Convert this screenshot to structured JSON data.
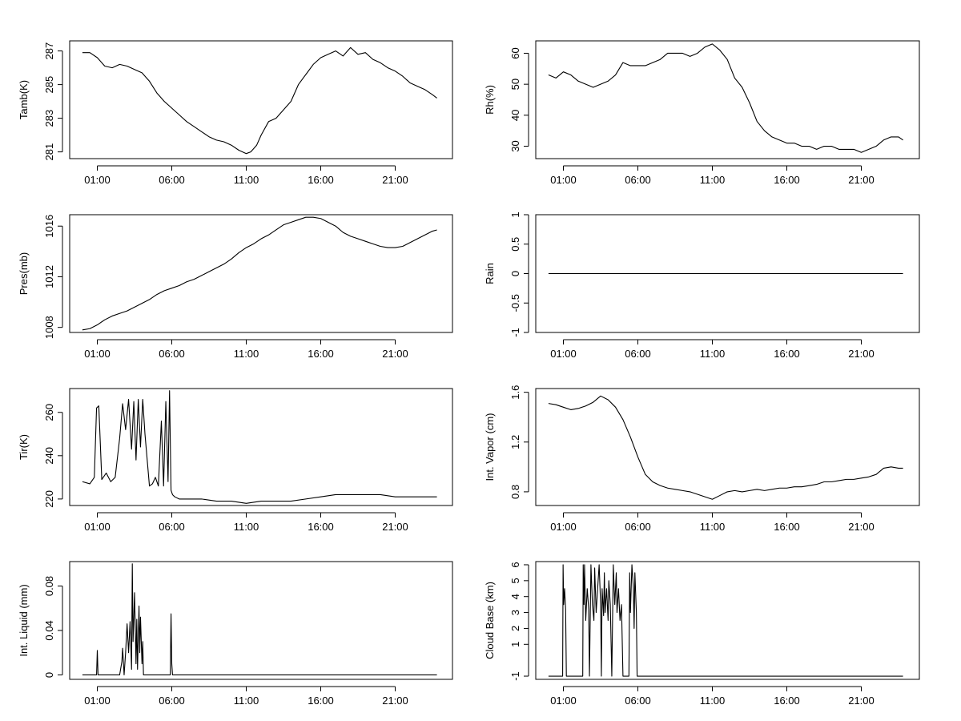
{
  "x_tick_labels": [
    "01:00",
    "06:00",
    "11:00",
    "16:00",
    "21:00"
  ],
  "chart_data": [
    {
      "type": "line",
      "ylabel": "Tamb(K)",
      "x_unit": "hours",
      "x_range": [
        0.0,
        23.8
      ],
      "ylim": [
        280.6,
        287.6
      ],
      "yticks": [
        281,
        283,
        285,
        287
      ],
      "series": [
        {
          "x": [
            0,
            0.5,
            1,
            1.5,
            2,
            2.5,
            3,
            3.5,
            4,
            4.5,
            5,
            5.5,
            6,
            6.5,
            7,
            7.5,
            8,
            8.5,
            9,
            9.5,
            10,
            10.5,
            11,
            11.3,
            11.7,
            12,
            12.5,
            13,
            13.5,
            14,
            14.5,
            15,
            15.5,
            16,
            16.5,
            17,
            17.5,
            18,
            18.5,
            19,
            19.5,
            20,
            20.5,
            21,
            21.5,
            22,
            22.5,
            23,
            23.5,
            23.8
          ],
          "values": [
            286.9,
            286.9,
            286.6,
            286.1,
            286.0,
            286.2,
            286.1,
            285.9,
            285.7,
            285.2,
            284.5,
            284.0,
            283.6,
            283.2,
            282.8,
            282.5,
            282.2,
            281.9,
            281.7,
            281.6,
            281.4,
            281.1,
            280.9,
            281.0,
            281.4,
            282.0,
            282.8,
            283.0,
            283.5,
            284.0,
            285.0,
            285.6,
            286.2,
            286.6,
            286.8,
            287.0,
            286.7,
            287.2,
            286.8,
            286.9,
            286.5,
            286.3,
            286.0,
            285.8,
            285.5,
            285.1,
            284.9,
            284.7,
            284.4,
            284.2
          ]
        }
      ]
    },
    {
      "type": "line",
      "ylabel": "Rh(%)",
      "x_unit": "hours",
      "x_range": [
        0.0,
        23.8
      ],
      "ylim": [
        26,
        64
      ],
      "yticks": [
        30,
        40,
        50,
        60
      ],
      "series": [
        {
          "x": [
            0,
            0.5,
            1,
            1.5,
            2,
            2.5,
            3,
            3.5,
            4,
            4.5,
            5,
            5.5,
            6,
            6.5,
            7,
            7.5,
            8,
            8.5,
            9,
            9.5,
            10,
            10.5,
            11,
            11.5,
            12,
            12.5,
            13,
            13.5,
            14,
            14.5,
            15,
            15.5,
            16,
            16.5,
            17,
            17.5,
            18,
            18.5,
            19,
            19.5,
            20,
            20.5,
            21,
            21.5,
            22,
            22.5,
            23,
            23.5,
            23.8
          ],
          "values": [
            53,
            52,
            54,
            53,
            51,
            50,
            49,
            50,
            51,
            53,
            57,
            56,
            56,
            56,
            57,
            58,
            60,
            60,
            60,
            59,
            60,
            62,
            63,
            61,
            58,
            52,
            49,
            44,
            38,
            35,
            33,
            32,
            31,
            31,
            30,
            30,
            29,
            30,
            30,
            29,
            29,
            29,
            28,
            29,
            30,
            32,
            33,
            33,
            32
          ]
        }
      ]
    },
    {
      "type": "line",
      "ylabel": "Pres(mb)",
      "x_unit": "hours",
      "x_range": [
        0.0,
        23.8
      ],
      "ylim": [
        1007.6,
        1016.9
      ],
      "yticks": [
        1008,
        1012,
        1016
      ],
      "series": [
        {
          "x": [
            0,
            0.5,
            1,
            1.5,
            2,
            2.5,
            3,
            3.5,
            4,
            4.5,
            5,
            5.5,
            6,
            6.5,
            7,
            7.5,
            8,
            8.5,
            9,
            9.5,
            10,
            10.5,
            11,
            11.5,
            12,
            12.5,
            13,
            13.5,
            14,
            14.5,
            15,
            15.5,
            16,
            16.5,
            17,
            17.5,
            18,
            18.5,
            19,
            19.5,
            20,
            20.5,
            21,
            21.5,
            22,
            22.5,
            23,
            23.5,
            23.8
          ],
          "values": [
            1007.8,
            1007.9,
            1008.2,
            1008.6,
            1008.9,
            1009.1,
            1009.3,
            1009.6,
            1009.9,
            1010.2,
            1010.6,
            1010.9,
            1011.1,
            1011.3,
            1011.6,
            1011.8,
            1012.1,
            1012.4,
            1012.7,
            1013.0,
            1013.4,
            1013.9,
            1014.3,
            1014.6,
            1015.0,
            1015.3,
            1015.7,
            1016.1,
            1016.3,
            1016.5,
            1016.7,
            1016.7,
            1016.6,
            1016.3,
            1016.0,
            1015.5,
            1015.2,
            1015.0,
            1014.8,
            1014.6,
            1014.4,
            1014.3,
            1014.3,
            1014.4,
            1014.7,
            1015.0,
            1015.3,
            1015.6,
            1015.7
          ]
        }
      ]
    },
    {
      "type": "line",
      "ylabel": "Rain",
      "x_unit": "hours",
      "x_range": [
        0.0,
        23.8
      ],
      "ylim": [
        -1.0,
        1.0
      ],
      "yticks": [
        -1.0,
        -0.5,
        0.0,
        0.5,
        1.0
      ],
      "series": [
        {
          "x": [
            0,
            23.8
          ],
          "values": [
            0,
            0
          ]
        }
      ]
    },
    {
      "type": "line",
      "ylabel": "Tir(K)",
      "x_unit": "hours",
      "x_range": [
        0.0,
        23.8
      ],
      "ylim": [
        217,
        271
      ],
      "yticks": [
        220,
        240,
        260
      ],
      "series": [
        {
          "x": [
            0,
            0.5,
            0.8,
            0.95,
            1.1,
            1.3,
            1.6,
            1.9,
            2.2,
            2.5,
            2.7,
            2.9,
            3.1,
            3.3,
            3.45,
            3.6,
            3.75,
            3.9,
            4.05,
            4.2,
            4.35,
            4.5,
            4.7,
            4.9,
            5.1,
            5.3,
            5.45,
            5.6,
            5.75,
            5.85,
            5.95,
            6.05,
            6.2,
            6.5,
            7,
            8,
            9,
            10,
            11,
            12,
            13,
            14,
            15,
            16,
            17,
            18,
            19,
            20,
            21,
            22,
            23,
            23.8
          ],
          "values": [
            228,
            227,
            230,
            262,
            263,
            229,
            232,
            228,
            230,
            248,
            264,
            252,
            266,
            243,
            265,
            238,
            266,
            244,
            266,
            250,
            238,
            226,
            227,
            230,
            226,
            256,
            226,
            265,
            228,
            270,
            224,
            222,
            221,
            220,
            220,
            220,
            219,
            219,
            218,
            219,
            219,
            219,
            220,
            221,
            222,
            222,
            222,
            222,
            221,
            221,
            221,
            221
          ]
        }
      ]
    },
    {
      "type": "line",
      "ylabel": "Int. Vapor (cm)",
      "x_unit": "hours",
      "x_range": [
        0.0,
        23.8
      ],
      "ylim": [
        0.69,
        1.63
      ],
      "yticks": [
        0.8,
        1.2,
        1.6
      ],
      "series": [
        {
          "x": [
            0,
            0.5,
            1,
            1.5,
            2,
            2.5,
            3,
            3.5,
            4,
            4.5,
            5,
            5.5,
            6,
            6.5,
            7,
            7.5,
            8,
            8.5,
            9,
            9.5,
            10,
            10.5,
            11,
            11.5,
            12,
            12.5,
            13,
            13.5,
            14,
            14.5,
            15,
            15.5,
            16,
            16.5,
            17,
            17.5,
            18,
            18.5,
            19,
            19.5,
            20,
            20.5,
            21,
            21.5,
            22,
            22.5,
            23,
            23.5,
            23.8
          ],
          "values": [
            1.51,
            1.5,
            1.48,
            1.46,
            1.47,
            1.49,
            1.52,
            1.57,
            1.54,
            1.48,
            1.38,
            1.24,
            1.08,
            0.94,
            0.88,
            0.85,
            0.83,
            0.82,
            0.81,
            0.8,
            0.78,
            0.76,
            0.74,
            0.77,
            0.8,
            0.81,
            0.8,
            0.81,
            0.82,
            0.81,
            0.82,
            0.83,
            0.83,
            0.84,
            0.84,
            0.85,
            0.86,
            0.88,
            0.88,
            0.89,
            0.9,
            0.9,
            0.91,
            0.92,
            0.94,
            0.99,
            1.0,
            0.99,
            0.99
          ]
        }
      ]
    },
    {
      "type": "line",
      "ylabel": "Int. Liquid (mm)",
      "x_unit": "hours",
      "x_range": [
        0.0,
        23.8
      ],
      "ylim": [
        -0.004,
        0.102
      ],
      "yticks": [
        0.0,
        0.04,
        0.08
      ],
      "series": [
        {
          "x": [
            0,
            0.95,
            1.0,
            1.05,
            2.5,
            2.6,
            2.65,
            2.7,
            2.8,
            2.9,
            3.0,
            3.1,
            3.2,
            3.3,
            3.35,
            3.4,
            3.5,
            3.6,
            3.65,
            3.7,
            3.8,
            3.85,
            3.9,
            4.0,
            4.05,
            4.1,
            4.2,
            5.9,
            5.95,
            6.0,
            6.05,
            23.8
          ],
          "values": [
            0,
            0,
            0.022,
            0,
            0,
            0.008,
            0.012,
            0.024,
            0,
            0.02,
            0.046,
            0.02,
            0.048,
            0.005,
            0.1,
            0.03,
            0.074,
            0.01,
            0.05,
            0.005,
            0.062,
            0.02,
            0.052,
            0.01,
            0.03,
            0,
            0,
            0,
            0.055,
            0.01,
            0,
            0
          ]
        }
      ]
    },
    {
      "type": "line",
      "ylabel": "Cloud Base (km)",
      "x_unit": "hours",
      "x_range": [
        0.0,
        23.8
      ],
      "ylim": [
        -1.2,
        6.2
      ],
      "yticks": [
        -1,
        1,
        2,
        3,
        4,
        5,
        6
      ],
      "series": [
        {
          "x": [
            0,
            0.95,
            0.98,
            1.02,
            1.08,
            1.15,
            1.2,
            2.3,
            2.33,
            2.38,
            2.42,
            2.5,
            2.6,
            2.7,
            2.75,
            2.85,
            2.95,
            3.05,
            3.1,
            3.2,
            3.3,
            3.4,
            3.5,
            3.55,
            3.6,
            3.7,
            3.75,
            3.8,
            3.9,
            4.0,
            4.05,
            4.15,
            4.25,
            4.35,
            4.45,
            4.55,
            4.6,
            4.7,
            4.8,
            4.9,
            5.0,
            5.4,
            5.45,
            5.5,
            5.6,
            5.7,
            5.75,
            5.8,
            5.9,
            5.95,
            6.0,
            23.8
          ],
          "values": [
            -1,
            -1,
            6,
            3.5,
            4.5,
            3.2,
            -1,
            -1,
            6,
            3.5,
            6,
            2.5,
            4.5,
            3.2,
            -1,
            6,
            3.5,
            2.5,
            5.8,
            3.0,
            4.5,
            6,
            3.5,
            -1,
            4.5,
            2.8,
            5.5,
            3.0,
            4.5,
            2.5,
            5,
            3.5,
            -1,
            6,
            3.5,
            5.5,
            3.0,
            4.5,
            2.5,
            3.5,
            -1,
            -1,
            5.5,
            3.0,
            6,
            4.5,
            2.0,
            5.5,
            3.0,
            -1,
            -1,
            -1
          ]
        }
      ]
    }
  ]
}
